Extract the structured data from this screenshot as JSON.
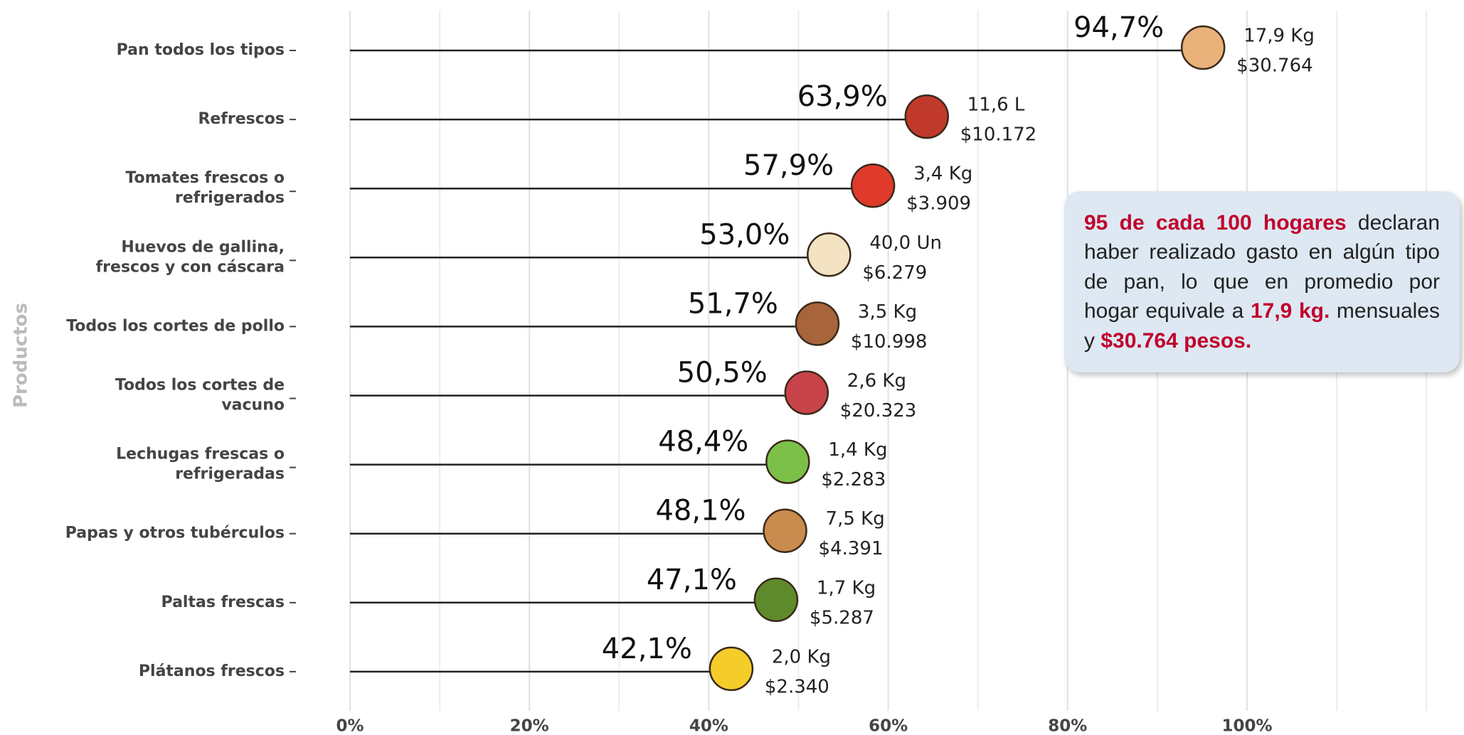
{
  "chart_data": {
    "type": "lollipop",
    "y_axis_label": "Productos",
    "categories": [
      "Pan todos los tipos",
      "Refrescos",
      "Tomates frescos o\nrefrigerados",
      "Huevos de gallina,\nfrescos y con cáscara",
      "Todos los cortes de pollo",
      "Todos los cortes de\nvacuno",
      "Lechugas frescas o\nrefrigeradas",
      "Papas y otros tubérculos",
      "Paltas frescas",
      "Plátanos frescos"
    ],
    "values": [
      94.7,
      63.9,
      57.9,
      53.0,
      51.7,
      50.5,
      48.4,
      48.1,
      47.1,
      42.1
    ],
    "value_labels": [
      "94,7%",
      "63,9%",
      "57,9%",
      "53,0%",
      "51,7%",
      "50,5%",
      "48,4%",
      "48,1%",
      "47,1%",
      "42,1%"
    ],
    "quantity_labels": [
      "17,9 Kg",
      "11,6 L",
      "3,4 Kg",
      "40,0 Un",
      "3,5 Kg",
      "2,6 Kg",
      "1,4 Kg",
      "7,5 Kg",
      "1,7 Kg",
      "2,0 Kg"
    ],
    "spend_labels": [
      "$30.764",
      "$10.172",
      "$3.909",
      "$6.279",
      "$10.998",
      "$20.323",
      "$2.283",
      "$4.391",
      "$5.287",
      "$2.340"
    ],
    "icon_colors": [
      "#e9b27a",
      "#c0392b",
      "#e03a2b",
      "#f3e3c3",
      "#a8643a",
      "#c9434a",
      "#7cc04a",
      "#c98b4e",
      "#5f8a2c",
      "#f5cd2a"
    ],
    "color": "#222222",
    "xlim": [
      0,
      124
    ],
    "xticks": [
      {
        "value": 0,
        "label": "0%"
      },
      {
        "value": 20,
        "label": "20%"
      },
      {
        "value": 40,
        "label": "40%"
      },
      {
        "value": 60,
        "label": "60%"
      },
      {
        "value": 80,
        "label": "80%"
      },
      {
        "value": 100,
        "label": "100%"
      }
    ],
    "grid": true,
    "annotation": {
      "parts": [
        {
          "text": "95 de cada 100 hogares",
          "highlight": true
        },
        {
          "text": " declaran haber realizado gasto en algún tipo de pan, lo que en promedio por hogar equivale a ",
          "highlight": false
        },
        {
          "text": "17,9 kg.",
          "highlight": true
        },
        {
          "text": " mensuales y ",
          "highlight": false
        },
        {
          "text": "$30.764 pesos.",
          "highlight": true
        }
      ]
    }
  }
}
